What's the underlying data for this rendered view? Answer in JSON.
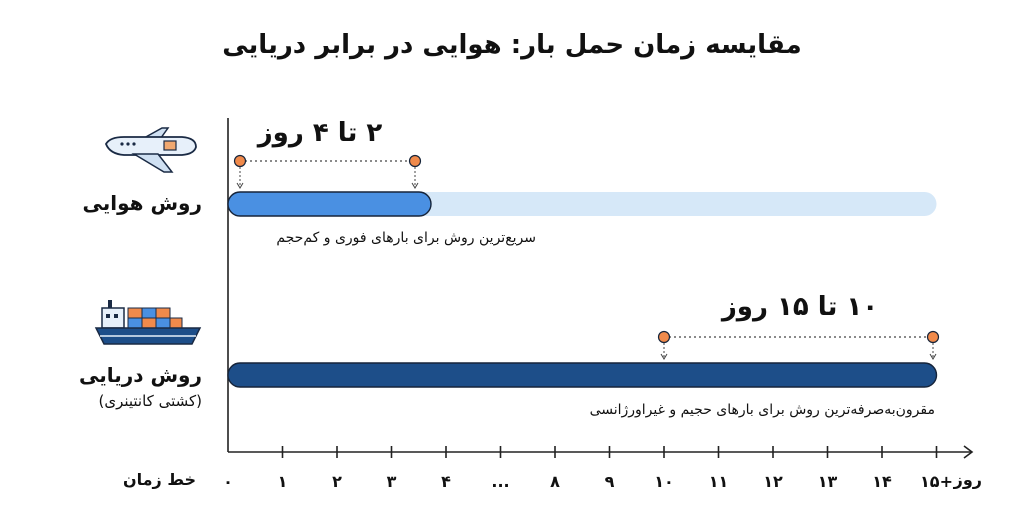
{
  "title": "مقایسه زمان حمل بار: هوایی در برابر دریایی",
  "methods": [
    {
      "label": "روش هوایی",
      "sublabel": "",
      "range_label": "۲ تا ۴ روز",
      "note": "سریع‌ترین روش برای بارهای فوری و کم‌حجم",
      "icon": "airplane-icon",
      "color": "#4a90e2",
      "track_color": "#d6e8f8"
    },
    {
      "label": "روش دریایی",
      "sublabel": "(کشتی کانتینری)",
      "range_label": "۱۰ تا ۱۵ روز",
      "note": "مقرون‌به‌صرفه‌ترین روش برای بارهای حجیم و غیراورژانسی",
      "icon": "container-ship-icon",
      "color": "#1d4e89",
      "track_color": "#1d4e89"
    }
  ],
  "axis": {
    "name": "خط زمان",
    "unit": "روز",
    "ticks": [
      "۰",
      "۱",
      "۲",
      "۳",
      "۴",
      "...",
      "۸",
      "۹",
      "۱۰",
      "۱۱",
      "۱۲",
      "۱۳",
      "۱۴",
      "۱۵+"
    ]
  },
  "colors": {
    "marker": "#f08a4b",
    "axis": "#222222"
  },
  "chart_data": {
    "type": "bar",
    "orientation": "horizontal",
    "title": "مقایسه زمان حمل بار: هوایی در برابر دریایی",
    "xlabel": "خط زمان",
    "categories": [
      "روش هوایی",
      "روش دریایی"
    ],
    "ranges": [
      [
        2,
        4
      ],
      [
        10,
        15
      ]
    ],
    "unit": "روز",
    "x_ticks": [
      "۰",
      "۱",
      "۲",
      "۳",
      "۴",
      "...",
      "۸",
      "۹",
      "۱۰",
      "۱۱",
      "۱۲",
      "۱۳",
      "۱۴",
      "۱۵+"
    ],
    "axis_break": [
      4,
      8
    ],
    "grid": false,
    "legend": "none"
  }
}
